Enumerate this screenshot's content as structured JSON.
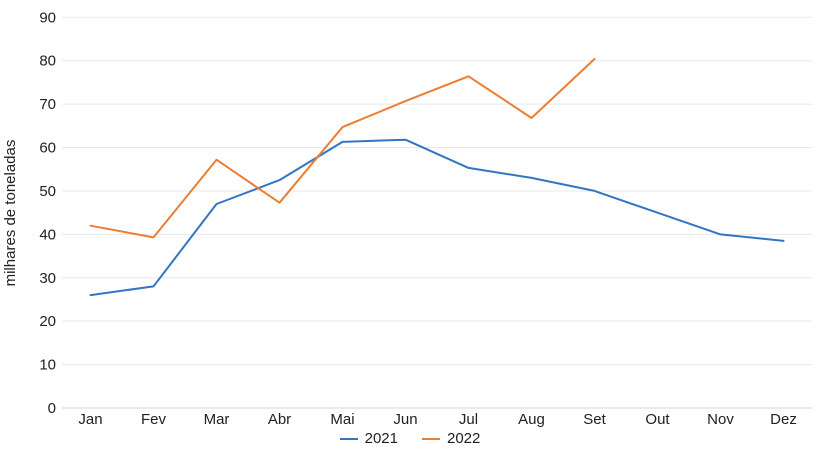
{
  "y_axis_title": "milhares de toneladas",
  "chart_data": {
    "type": "line",
    "title": "",
    "xlabel": "",
    "ylabel": "milhares de toneladas",
    "categories": [
      "Jan",
      "Fev",
      "Mar",
      "Abr",
      "Mai",
      "Jun",
      "Jul",
      "Aug",
      "Set",
      "Out",
      "Nov",
      "Dez"
    ],
    "series": [
      {
        "name": "2021",
        "color": "#3276c3",
        "values": [
          26,
          28,
          47,
          52.5,
          61.3,
          61.8,
          55.3,
          53,
          50,
          45,
          40,
          38.5
        ]
      },
      {
        "name": "2022",
        "color": "#ed7d31",
        "values": [
          42,
          39.3,
          57.2,
          47.3,
          64.7,
          70.7,
          76.4,
          66.8,
          80.4
        ]
      }
    ],
    "ylim": [
      0,
      90
    ],
    "ytick_step": 10,
    "yticks": [
      0,
      10,
      20,
      30,
      40,
      50,
      60,
      70,
      80,
      90
    ],
    "grid": true,
    "legend_position": "bottom"
  },
  "colors": {
    "gridline": "#e8e8e8",
    "baseline": "#d6d6d6",
    "tick_text": "#212121",
    "background": "#ffffff"
  }
}
